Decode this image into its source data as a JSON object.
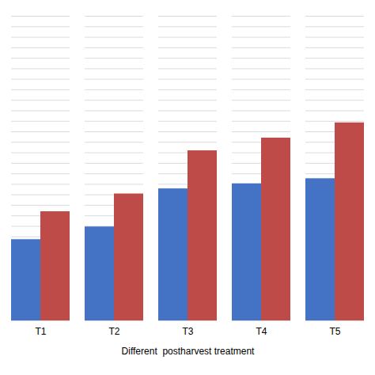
{
  "chart_data": {
    "type": "bar",
    "xlabel": "Different  postharvest treatment",
    "categories": [
      "T1",
      "T2",
      "T3",
      "T4",
      "T5"
    ],
    "series": [
      {
        "color": "#4472C4",
        "values": [
          3.2,
          3.7,
          5.2,
          5.4,
          5.6
        ]
      },
      {
        "color": "#BE4B48",
        "values": [
          4.3,
          5.0,
          6.7,
          7.2,
          7.8
        ]
      }
    ],
    "ylim": [
      0,
      12
    ],
    "yticks": [
      0,
      0.41379310344827586,
      0.8275862068965517,
      1.2413793103448276,
      1.6551724137931034,
      2.0689655172413794,
      2.4827586206896552,
      2.896551724137931,
      3.310344827586207,
      3.7241379310344827,
      4.137931034482759,
      4.551724137931035,
      4.9655172413793105,
      5.379310344827586,
      5.793103448275862,
      6.206896551724138,
      6.620689655172414,
      7.0344827586206895,
      7.448275862068965,
      7.862068965517241,
      8.275862068965518,
      8.689655172413794,
      9.10344827586207,
      9.517241379310345,
      9.931034482758621,
      10.344827586206897,
      10.758620689655173,
      11.172413793103448,
      11.586206896551724,
      12
    ],
    "grid": true,
    "tick_labels": "x"
  }
}
